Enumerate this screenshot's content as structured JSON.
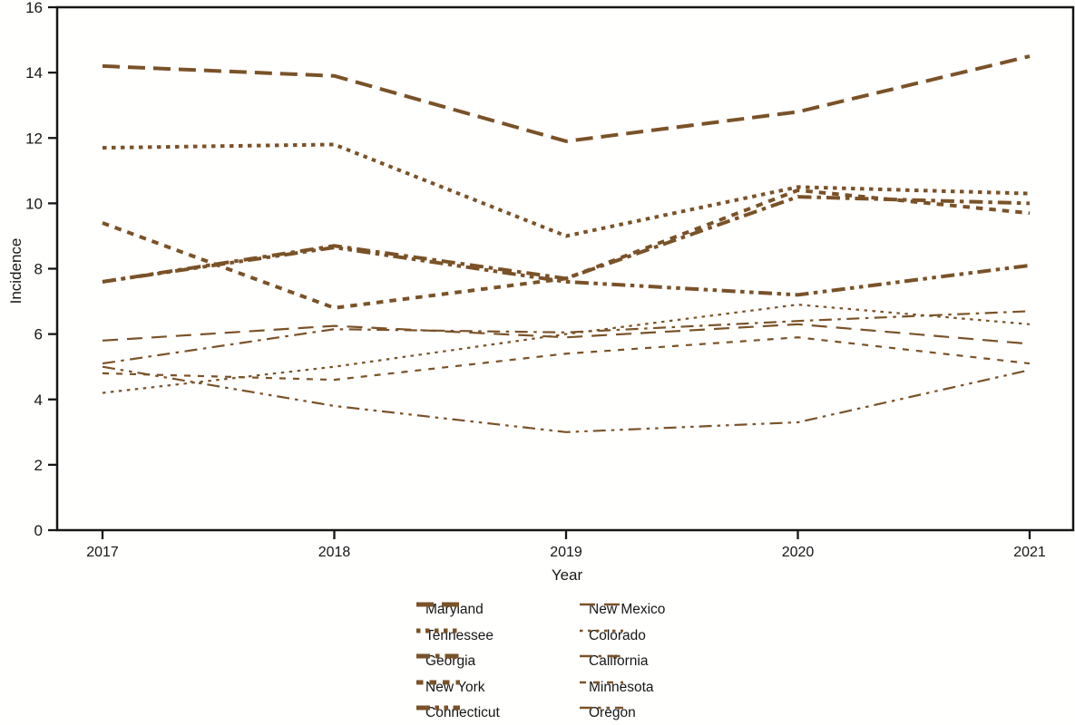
{
  "figure": {
    "background": "#fffffe",
    "axis_color": "#161616",
    "line_color": "#7a5228"
  },
  "chart_data": {
    "type": "line",
    "title": "",
    "xlabel": "Year",
    "ylabel": "Incidence",
    "x_years": [
      "2017",
      "2018",
      "2019",
      "2020",
      "2021"
    ],
    "yticks": [
      0,
      2,
      4,
      6,
      8,
      10,
      12,
      14,
      16
    ],
    "ylim": [
      0,
      16
    ],
    "grid": false,
    "legend_position": "bottom-two-columns",
    "series": [
      {
        "name": "Maryland",
        "values": [
          14.2,
          13.9,
          11.9,
          12.8,
          14.5
        ],
        "dash": "long-dash",
        "thick": true
      },
      {
        "name": "Tennessee",
        "values": [
          11.7,
          11.8,
          9.0,
          10.5,
          10.3
        ],
        "dash": "dot",
        "thick": true
      },
      {
        "name": "Georgia",
        "values": [
          7.6,
          8.7,
          7.7,
          10.2,
          10.0
        ],
        "dash": "dash-dot",
        "thick": true
      },
      {
        "name": "New York",
        "values": [
          9.4,
          6.8,
          7.7,
          10.4,
          9.7
        ],
        "dash": "dash",
        "thick": true
      },
      {
        "name": "Connecticut",
        "values": [
          7.6,
          8.65,
          7.6,
          7.2,
          8.1
        ],
        "dash": "dash-dot-dot",
        "thick": true
      },
      {
        "name": "New Mexico",
        "values": [
          5.8,
          6.25,
          5.9,
          6.3,
          5.7
        ],
        "dash": "long-dash",
        "thick": false
      },
      {
        "name": "Colorado",
        "values": [
          4.2,
          5.0,
          6.0,
          6.9,
          6.3
        ],
        "dash": "dot",
        "thick": false
      },
      {
        "name": "California",
        "values": [
          5.1,
          6.15,
          6.05,
          6.4,
          6.7
        ],
        "dash": "dash-dot",
        "thick": false
      },
      {
        "name": "Minnesota",
        "values": [
          4.8,
          4.6,
          5.4,
          5.9,
          5.1
        ],
        "dash": "dash",
        "thick": false
      },
      {
        "name": "Oregon",
        "values": [
          5.0,
          3.8,
          3.0,
          3.3,
          4.9
        ],
        "dash": "dash-dot-dot",
        "thick": false
      }
    ],
    "legend_columns": [
      [
        "Maryland",
        "Tennessee",
        "Georgia",
        "New York",
        "Connecticut"
      ],
      [
        "New Mexico",
        "Colorado",
        "California",
        "Minnesota",
        "Oregon"
      ]
    ]
  }
}
